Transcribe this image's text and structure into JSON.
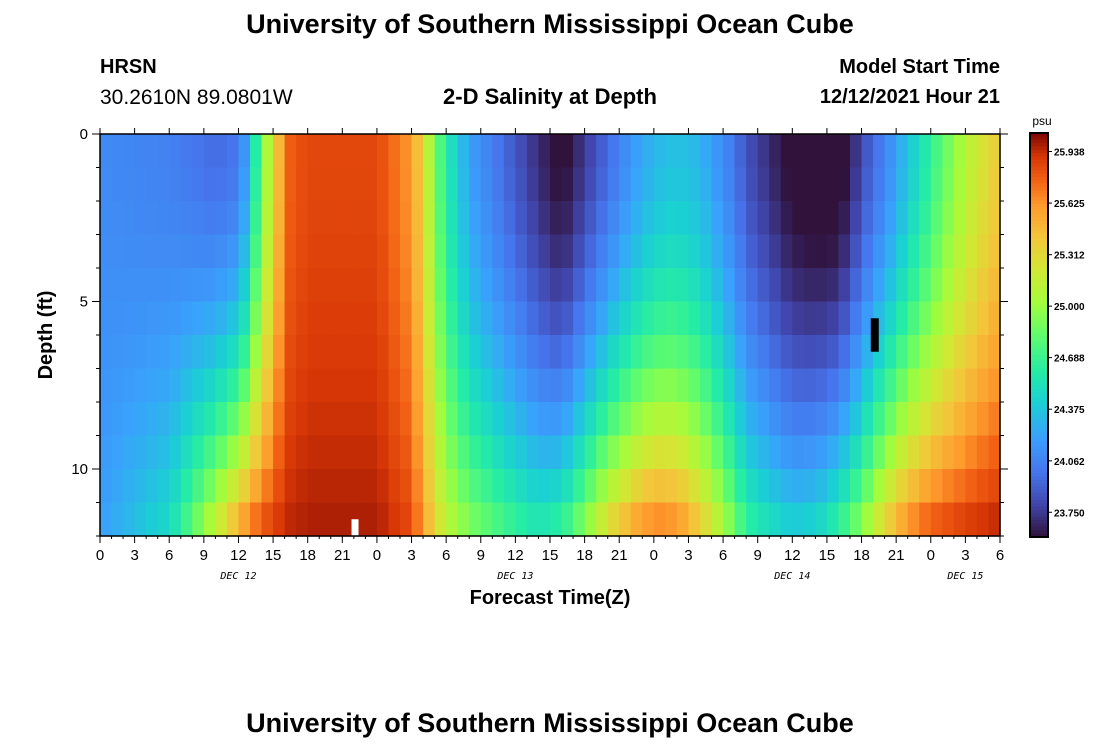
{
  "header": {
    "title": "University of Southern Mississippi Ocean Cube",
    "station_name": "HRSN",
    "coordinates": "30.2610N  89.0801W",
    "plot_title": "2-D Salinity at Depth",
    "model_start_label": "Model Start Time",
    "model_start_value": "12/12/2021 Hour 21"
  },
  "footer": {
    "title": "University of Southern Mississippi Ocean Cube"
  },
  "chart_data": {
    "type": "heatmap",
    "title": "2-D Salinity at Depth",
    "xlabel": "Forecast Time(Z)",
    "ylabel": "Depth (ft)",
    "x_hours_range": [
      0,
      78
    ],
    "x_tick_labels": [
      "0",
      "3",
      "6",
      "9",
      "12",
      "15",
      "18",
      "21",
      "0",
      "3",
      "6",
      "9",
      "12",
      "15",
      "18",
      "21",
      "0",
      "3",
      "6",
      "9",
      "12",
      "15",
      "18",
      "21",
      "0",
      "3",
      "6"
    ],
    "date_labels": [
      {
        "label": "DEC 12",
        "hour": 12
      },
      {
        "label": "DEC 13",
        "hour": 36
      },
      {
        "label": "DEC 14",
        "hour": 60
      },
      {
        "label": "DEC 15",
        "hour": 75
      }
    ],
    "y_range_ft": [
      0,
      12
    ],
    "y_major_ticks": [
      0,
      5,
      10
    ],
    "y_tick_labels": [
      "0",
      "5",
      "10"
    ],
    "colorbar": {
      "units": "psu",
      "min": 23.6,
      "max": 26.05,
      "tick_labels": [
        "25.938",
        "25.625",
        "25.312",
        "25.000",
        "24.688",
        "24.375",
        "24.062",
        "23.750"
      ],
      "tick_values": [
        25.938,
        25.625,
        25.312,
        25.0,
        24.688,
        24.375,
        24.062,
        23.75
      ]
    },
    "time_profile": {
      "hours": [
        0,
        6,
        10,
        12,
        13,
        14,
        15,
        16,
        18,
        24,
        27,
        28,
        29,
        30,
        32,
        35,
        38,
        40,
        42,
        44,
        46,
        48,
        50,
        52,
        54,
        55,
        56,
        58,
        60,
        62,
        64,
        65,
        66,
        67,
        68,
        70,
        72,
        74,
        76,
        78
      ],
      "surface": [
        24.1,
        24.05,
        23.95,
        24.0,
        24.3,
        24.9,
        25.2,
        25.75,
        25.85,
        25.85,
        25.6,
        25.3,
        24.9,
        24.6,
        24.2,
        23.95,
        23.7,
        23.55,
        23.75,
        23.95,
        24.15,
        24.3,
        24.35,
        24.3,
        24.1,
        24.0,
        23.85,
        23.7,
        23.55,
        23.5,
        23.5,
        23.65,
        23.8,
        23.95,
        24.05,
        24.35,
        24.65,
        24.95,
        25.2,
        25.4
      ],
      "bottom": [
        24.2,
        24.5,
        25.2,
        25.6,
        25.75,
        25.85,
        25.9,
        25.95,
        25.98,
        25.98,
        25.85,
        25.6,
        25.35,
        25.15,
        24.95,
        24.75,
        24.6,
        24.7,
        25.0,
        25.35,
        25.6,
        25.75,
        25.7,
        25.45,
        25.1,
        24.9,
        24.7,
        24.55,
        24.45,
        24.5,
        24.7,
        24.85,
        25.0,
        25.2,
        25.4,
        25.7,
        25.85,
        25.9,
        25.95,
        25.98
      ]
    }
  }
}
